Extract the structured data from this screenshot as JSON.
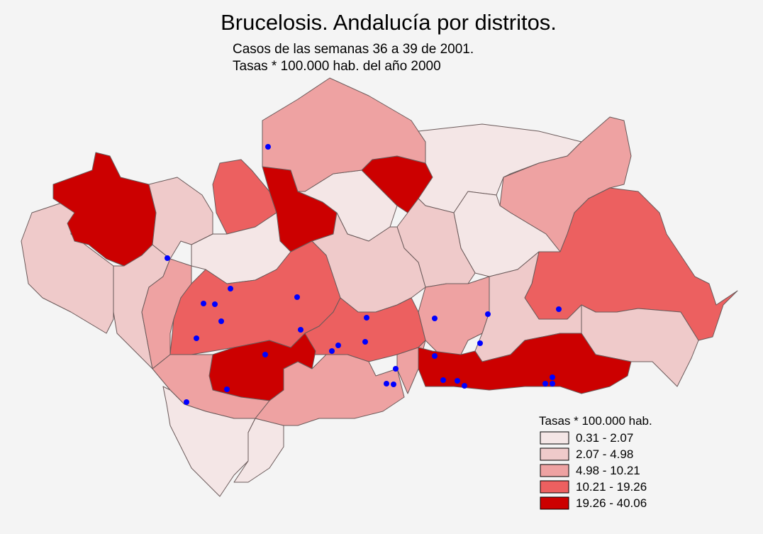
{
  "title": "Brucelosis. Andalucía por distritos.",
  "subtitle": [
    "Casos de las semanas 36 a 39 de 2001.",
    "Tasas * 100.000 hab. del año 2000"
  ],
  "legend": {
    "title": "Tasas * 100.000 hab.",
    "items": [
      {
        "label": "0.31 - 2.07",
        "color": "#f4e6e6"
      },
      {
        "label": "2.07 - 4.98",
        "color": "#efcaca"
      },
      {
        "label": "4.98 - 10.21",
        "color": "#eea2a2"
      },
      {
        "label": "10.21 - 19.26",
        "color": "#ec6060"
      },
      {
        "label": "19.26 - 40.06",
        "color": "#cc0000"
      }
    ]
  },
  "case_color": "#0000ff"
}
